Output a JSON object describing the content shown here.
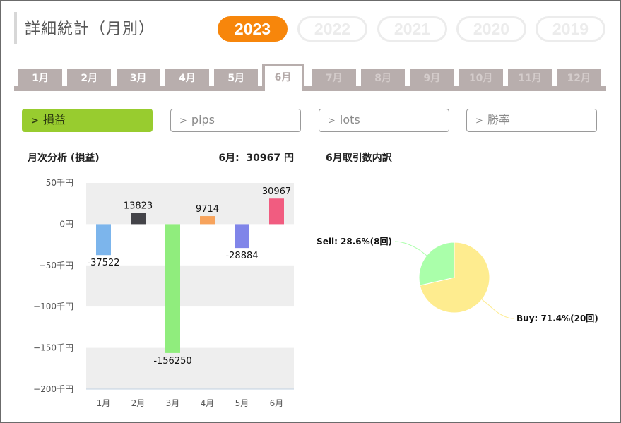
{
  "header": {
    "title": "詳細統計（月別）"
  },
  "years": [
    {
      "label": "2023",
      "active": true
    },
    {
      "label": "2022",
      "active": false
    },
    {
      "label": "2021",
      "active": false
    },
    {
      "label": "2020",
      "active": false
    },
    {
      "label": "2019",
      "active": false
    }
  ],
  "months": [
    {
      "label": "1月",
      "state": "enabled"
    },
    {
      "label": "2月",
      "state": "enabled"
    },
    {
      "label": "3月",
      "state": "enabled"
    },
    {
      "label": "4月",
      "state": "enabled"
    },
    {
      "label": "5月",
      "state": "enabled"
    },
    {
      "label": "6月",
      "state": "active"
    },
    {
      "label": "7月",
      "state": "disabled"
    },
    {
      "label": "8月",
      "state": "disabled"
    },
    {
      "label": "9月",
      "state": "disabled"
    },
    {
      "label": "10月",
      "state": "disabled"
    },
    {
      "label": "11月",
      "state": "disabled"
    },
    {
      "label": "12月",
      "state": "disabled"
    }
  ],
  "filters": [
    {
      "label": "損益",
      "active": true
    },
    {
      "label": "pips",
      "active": false
    },
    {
      "label": "lots",
      "active": false
    },
    {
      "label": "勝率",
      "active": false
    }
  ],
  "sections": {
    "monthly_title": "月次分析 (損益)",
    "month_total": "6月:  30967 円",
    "breakdown_title": "6月取引数内訳"
  },
  "colors": {
    "accent": "#f7860b",
    "filter_active": "#98cc2f",
    "tab": "#b8aead"
  },
  "chart_data": [
    {
      "type": "bar",
      "categories": [
        "1月",
        "2月",
        "3月",
        "4月",
        "5月",
        "6月"
      ],
      "values": [
        -37522,
        13823,
        -156250,
        9714,
        -28884,
        30967
      ],
      "value_labels": [
        "-37522",
        "13823",
        "-156250",
        "9714",
        "-28884",
        "30967"
      ],
      "bar_colors": [
        "#7cb5ec",
        "#434348",
        "#90ed7d",
        "#f7a35c",
        "#8085e9",
        "#f15c80"
      ],
      "ylim": [
        -200000,
        50000
      ],
      "yticks": [
        50000,
        0,
        -50000,
        -100000,
        -150000,
        -200000
      ],
      "ytick_labels": [
        "50千円",
        "0円",
        "−50千円",
        "−100千円",
        "−150千円",
        "−200千円"
      ],
      "grid": "alternating bands",
      "legend": "none"
    },
    {
      "type": "pie",
      "slices": [
        {
          "name": "Buy",
          "value": 71.4,
          "count": 20,
          "label": "Buy: 71.4%(20回)",
          "color": "#feec8f"
        },
        {
          "name": "Sell",
          "value": 28.6,
          "count": 8,
          "label": "Sell: 28.6%(8回)",
          "color": "#aaffaa"
        }
      ]
    }
  ]
}
